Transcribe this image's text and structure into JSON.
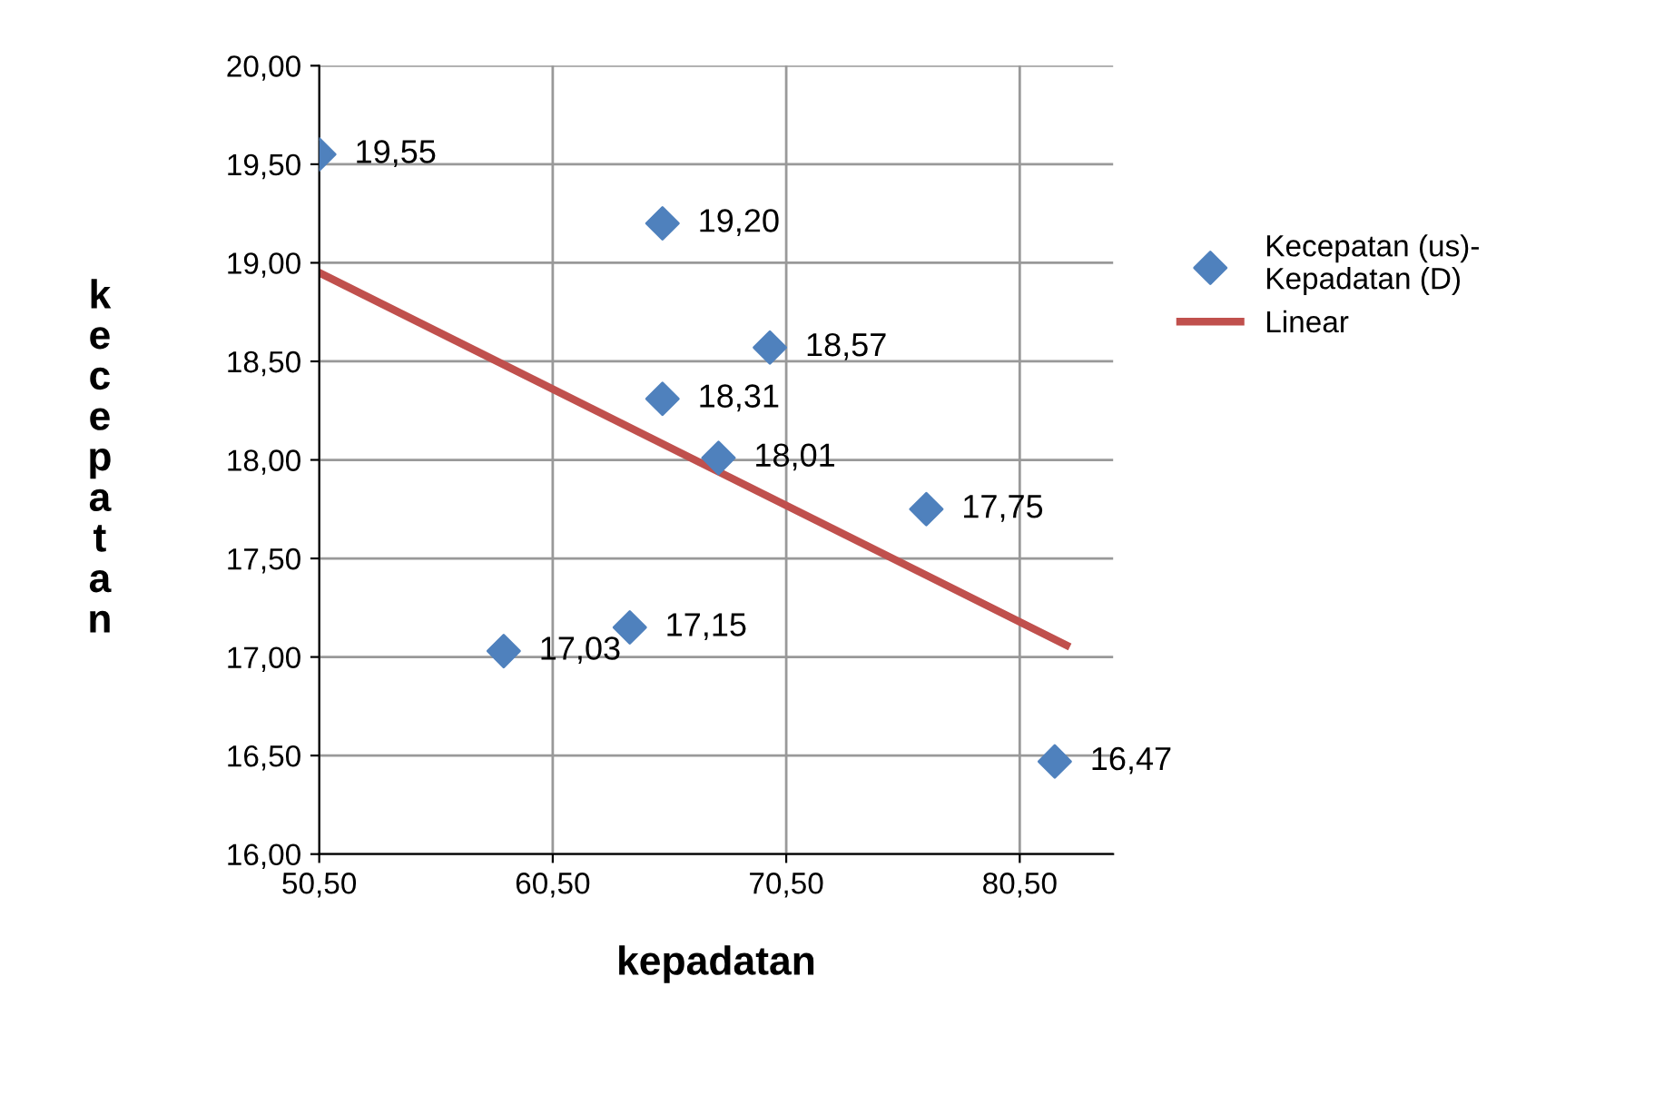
{
  "chart_data": {
    "type": "scatter",
    "xlabel": "kepadatan",
    "ylabel": "kecepatan",
    "xlim": [
      50.5,
      84.5
    ],
    "xticks": [
      {
        "value": 50.5,
        "label": "50,50"
      },
      {
        "value": 60.5,
        "label": "60,50"
      },
      {
        "value": 70.5,
        "label": "70,50"
      },
      {
        "value": 80.5,
        "label": "80,50"
      }
    ],
    "ylim": [
      16,
      20
    ],
    "yticks": [
      {
        "value": 16,
        "label": "16,00"
      },
      {
        "value": 16.5,
        "label": "16,50"
      },
      {
        "value": 17,
        "label": "17,00"
      },
      {
        "value": 17.5,
        "label": "17,50"
      },
      {
        "value": 18,
        "label": "18,00"
      },
      {
        "value": 18.5,
        "label": "18,50"
      },
      {
        "value": 19,
        "label": "19,00"
      },
      {
        "value": 19.5,
        "label": "19,50"
      },
      {
        "value": 20,
        "label": "20,00"
      }
    ],
    "grid": true,
    "legend": "right",
    "series": [
      {
        "name": "Kecepatan (us)-Kepadatan (D)",
        "color": "#4f81bd",
        "marker": "diamond",
        "x": [
          50.5,
          65.2,
          65.2,
          69.8,
          67.6,
          76.5,
          63.8,
          58.4,
          82.0
        ],
        "values": [
          19.55,
          19.2,
          18.31,
          18.57,
          18.01,
          17.75,
          17.15,
          17.03,
          16.47
        ],
        "value_labels": [
          "19,55",
          "19,20",
          "18,31",
          "18,57",
          "18,01",
          "17,75",
          "17,15",
          "17,03",
          "16,47"
        ]
      },
      {
        "name": "Linear",
        "type": "line",
        "color": "#c0504d",
        "x": [
          50.5,
          82.5
        ],
        "values": [
          18.95,
          17.06
        ]
      }
    ]
  }
}
